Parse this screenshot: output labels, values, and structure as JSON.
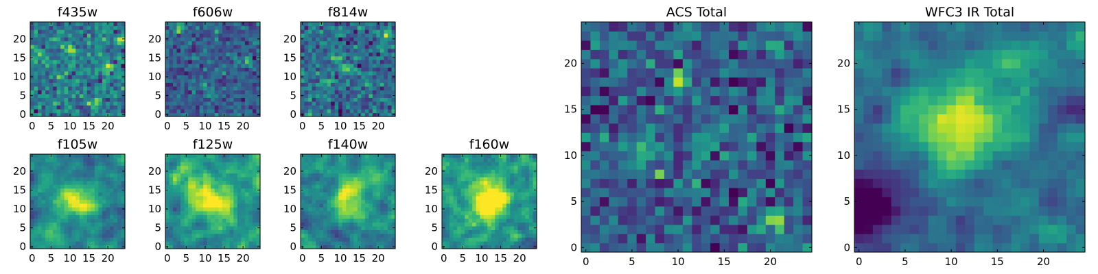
{
  "figure": {
    "description_free": true
  },
  "colormap": {
    "name": "viridis",
    "stops": [
      "#440154",
      "#482878",
      "#3e4a89",
      "#31688e",
      "#26828e",
      "#1f9e89",
      "#35b779",
      "#6ece58",
      "#b5de2b",
      "#fde725"
    ]
  },
  "chart_data": [
    {
      "type": "heatmap",
      "id": "f435w",
      "title": "f435w",
      "grid_size": 25,
      "xlim": [
        -0.5,
        24.5
      ],
      "ylim": [
        -0.5,
        24.5
      ],
      "xticks": [
        0,
        5,
        10,
        15,
        20
      ],
      "yticks": [
        0,
        5,
        10,
        15,
        20
      ],
      "xlabel": "",
      "ylabel": "",
      "texture": "pixel-noise",
      "seed": 435,
      "noise_level": 0.42,
      "spread": 0.13,
      "hotspots": [
        {
          "x": 10,
          "y": 17,
          "amp": 0.55
        },
        {
          "x": 20,
          "y": 12,
          "amp": 0.5
        },
        {
          "x": 8,
          "y": 10,
          "amp": 0.35
        },
        {
          "x": 1,
          "y": 15,
          "amp": 0.4
        },
        {
          "x": 23,
          "y": 20,
          "amp": 0.4
        },
        {
          "x": 17,
          "y": 3,
          "amp": 0.35
        }
      ]
    },
    {
      "type": "heatmap",
      "id": "f606w",
      "title": "f606w",
      "grid_size": 25,
      "xlim": [
        -0.5,
        24.5
      ],
      "ylim": [
        -0.5,
        24.5
      ],
      "xticks": [
        0,
        5,
        10,
        15,
        20
      ],
      "yticks": [
        0,
        5,
        10,
        15,
        20
      ],
      "xlabel": "",
      "ylabel": "",
      "texture": "pixel-noise",
      "seed": 606,
      "noise_level": 0.3,
      "spread": 0.11,
      "hotspots": [
        {
          "x": 3,
          "y": 23,
          "amp": 0.5
        },
        {
          "x": 21,
          "y": 14,
          "amp": 0.3
        },
        {
          "x": 12,
          "y": 6,
          "amp": 0.25
        }
      ]
    },
    {
      "type": "heatmap",
      "id": "f814w",
      "title": "f814w",
      "grid_size": 25,
      "xlim": [
        -0.5,
        24.5
      ],
      "ylim": [
        -0.5,
        24.5
      ],
      "xticks": [
        0,
        5,
        10,
        15,
        20
      ],
      "yticks": [
        0,
        5,
        10,
        15,
        20
      ],
      "xlabel": "",
      "ylabel": "",
      "texture": "pixel-noise",
      "seed": 814,
      "noise_level": 0.36,
      "spread": 0.13,
      "hotspots": [
        {
          "x": 9,
          "y": 15,
          "amp": 0.55
        },
        {
          "x": 11,
          "y": 12,
          "amp": 0.45
        },
        {
          "x": 22,
          "y": 21,
          "amp": 0.4
        },
        {
          "x": 6,
          "y": 8,
          "amp": 0.3
        }
      ]
    },
    {
      "type": "heatmap",
      "id": "f105w",
      "title": "f105w",
      "grid_size": 25,
      "xlim": [
        -0.5,
        24.5
      ],
      "ylim": [
        -0.5,
        24.5
      ],
      "xticks": [
        0,
        5,
        10,
        15,
        20
      ],
      "yticks": [
        0,
        5,
        10,
        15,
        20
      ],
      "xlabel": "",
      "ylabel": "",
      "texture": "smooth-noise",
      "seed": 105,
      "noise_level": 0.44,
      "spread": 0.12,
      "hotspots": [
        {
          "x": 10,
          "y": 13,
          "amp": 0.35
        },
        {
          "x": 14,
          "y": 11,
          "amp": 0.3
        },
        {
          "x": 4,
          "y": 3,
          "amp": 0.3
        }
      ]
    },
    {
      "type": "heatmap",
      "id": "f125w",
      "title": "f125w",
      "grid_size": 25,
      "xlim": [
        -0.5,
        24.5
      ],
      "ylim": [
        -0.5,
        24.5
      ],
      "xticks": [
        0,
        5,
        10,
        15,
        20
      ],
      "yticks": [
        0,
        5,
        10,
        15,
        20
      ],
      "xlabel": "",
      "ylabel": "",
      "texture": "smooth-noise",
      "seed": 125,
      "noise_level": 0.5,
      "spread": 0.14,
      "hotspots": [
        {
          "x": 10,
          "y": 12,
          "amp": 0.4
        },
        {
          "x": 14,
          "y": 11,
          "amp": 0.4
        },
        {
          "x": 6,
          "y": 18,
          "amp": 0.3
        }
      ]
    },
    {
      "type": "heatmap",
      "id": "f140w",
      "title": "f140w",
      "grid_size": 25,
      "xlim": [
        -0.5,
        24.5
      ],
      "ylim": [
        -0.5,
        24.5
      ],
      "xticks": [
        0,
        5,
        10,
        15,
        20
      ],
      "yticks": [
        0,
        5,
        10,
        15,
        20
      ],
      "xlabel": "",
      "ylabel": "",
      "texture": "smooth-noise",
      "seed": 140,
      "noise_level": 0.45,
      "spread": 0.13,
      "hotspots": [
        {
          "x": 13,
          "y": 15,
          "amp": 0.45
        },
        {
          "x": 12,
          "y": 10,
          "amp": 0.3
        },
        {
          "x": 19,
          "y": 20,
          "amp": 0.25
        }
      ]
    },
    {
      "type": "heatmap",
      "id": "f160w",
      "title": "f160w",
      "grid_size": 25,
      "xlim": [
        -0.5,
        24.5
      ],
      "ylim": [
        -0.5,
        24.5
      ],
      "xticks": [
        0,
        5,
        10,
        15,
        20
      ],
      "yticks": [
        0,
        5,
        10,
        15,
        20
      ],
      "xlabel": "",
      "ylabel": "",
      "texture": "smooth-noise",
      "seed": 160,
      "noise_level": 0.5,
      "spread": 0.14,
      "hotspots": [
        {
          "x": 12,
          "y": 14,
          "amp": 0.45
        },
        {
          "x": 10,
          "y": 10,
          "amp": 0.35
        },
        {
          "x": 15,
          "y": 12,
          "amp": 0.3
        }
      ]
    },
    {
      "type": "heatmap",
      "id": "acs-total",
      "title": "ACS Total",
      "grid_size": 25,
      "xlim": [
        -0.5,
        24.5
      ],
      "ylim": [
        -0.5,
        24.5
      ],
      "xticks": [
        0,
        5,
        10,
        15,
        20
      ],
      "yticks": [
        0,
        5,
        10,
        15,
        20
      ],
      "xlabel": "",
      "ylabel": "",
      "texture": "pixel-noise",
      "seed": 777,
      "noise_level": 0.3,
      "spread": 0.14,
      "hotspots": [
        {
          "x": 10,
          "y": 18,
          "amp": 0.5
        },
        {
          "x": 6,
          "y": 10,
          "amp": 0.45
        },
        {
          "x": 20,
          "y": 3,
          "amp": 0.5
        },
        {
          "x": 21,
          "y": 14,
          "amp": 0.35
        },
        {
          "x": 13,
          "y": 12,
          "amp": 0.3
        },
        {
          "x": 21,
          "y": 24,
          "amp": 0.4
        }
      ]
    },
    {
      "type": "heatmap",
      "id": "wfc3-ir-total",
      "title": "WFC3 IR Total",
      "grid_size": 25,
      "xlim": [
        -0.5,
        24.5
      ],
      "ylim": [
        -0.5,
        24.5
      ],
      "xticks": [
        0,
        5,
        10,
        15,
        20
      ],
      "yticks": [
        0,
        5,
        10,
        15,
        20
      ],
      "xlabel": "",
      "ylabel": "",
      "texture": "smooth-noise",
      "seed": 999,
      "noise_level": 0.36,
      "spread": 0.12,
      "hotspots": [
        {
          "x": 12,
          "y": 13,
          "amp": 0.4
        },
        {
          "x": 9,
          "y": 14,
          "amp": 0.3
        },
        {
          "x": 18,
          "y": 19,
          "amp": 0.25
        },
        {
          "x": 1,
          "y": 5,
          "amp": -0.45
        }
      ]
    }
  ]
}
